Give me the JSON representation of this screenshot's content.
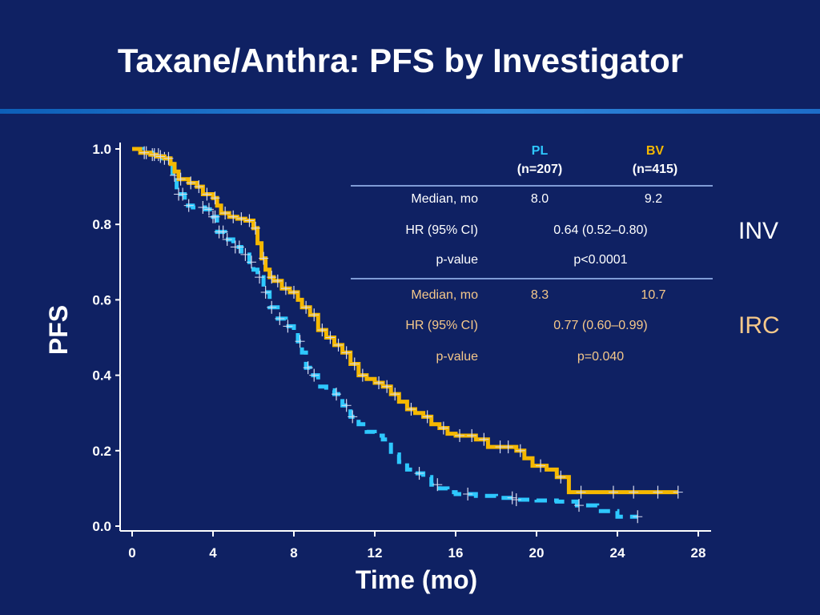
{
  "slide": {
    "title": "Taxane/Anthra:  PFS by Investigator"
  },
  "table": {
    "groups": [
      {
        "name": "PL",
        "n": "(n=207)",
        "color": "#2ec8ff"
      },
      {
        "name": "BV",
        "n": "(n=415)",
        "color": "#f5b800"
      }
    ],
    "sections": [
      {
        "tag": "INV",
        "color": "#ffffff",
        "median_label": "Median, mo",
        "median_pl": "8.0",
        "median_bv": "9.2",
        "hr_label": "HR (95% CI)",
        "hr_value": "0.64 (0.52–0.80)",
        "p_label": "p-value",
        "p_value": "p<0.0001"
      },
      {
        "tag": "IRC",
        "color": "#f5c88a",
        "median_label": "Median, mo",
        "median_pl": "8.3",
        "median_bv": "10.7",
        "hr_label": "HR (95% CI)",
        "hr_value": "0.77 (0.60–0.99)",
        "p_label": "p-value",
        "p_value": "p=0.040"
      }
    ]
  },
  "chart_data": {
    "type": "line",
    "xlabel": "Time (mo)",
    "ylabel": "PFS",
    "xlim": [
      0,
      28
    ],
    "ylim": [
      0,
      1.0
    ],
    "xticks": [
      0,
      4,
      8,
      12,
      16,
      20,
      24,
      28
    ],
    "yticks": [
      0.0,
      0.2,
      0.4,
      0.6,
      0.8,
      1.0
    ],
    "ytick_labels": [
      "0.0",
      "0.2",
      "0.4",
      "0.6",
      "0.8",
      "1.0"
    ],
    "step": true,
    "censor_marks": true,
    "series": [
      {
        "name": "PL",
        "color": "#2ec8ff",
        "style": "dashed",
        "points": [
          [
            0,
            1.0
          ],
          [
            0.5,
            0.99
          ],
          [
            1.0,
            0.985
          ],
          [
            1.5,
            0.975
          ],
          [
            1.8,
            0.96
          ],
          [
            2.0,
            0.93
          ],
          [
            2.2,
            0.88
          ],
          [
            2.6,
            0.85
          ],
          [
            3.0,
            0.845
          ],
          [
            3.6,
            0.84
          ],
          [
            4.0,
            0.82
          ],
          [
            4.2,
            0.78
          ],
          [
            4.6,
            0.76
          ],
          [
            5.0,
            0.74
          ],
          [
            5.4,
            0.72
          ],
          [
            5.8,
            0.7
          ],
          [
            6.0,
            0.68
          ],
          [
            6.2,
            0.66
          ],
          [
            6.5,
            0.62
          ],
          [
            6.8,
            0.58
          ],
          [
            7.2,
            0.55
          ],
          [
            7.6,
            0.53
          ],
          [
            8.0,
            0.52
          ],
          [
            8.2,
            0.49
          ],
          [
            8.4,
            0.46
          ],
          [
            8.6,
            0.42
          ],
          [
            8.8,
            0.4
          ],
          [
            9.2,
            0.37
          ],
          [
            9.6,
            0.36
          ],
          [
            10.0,
            0.35
          ],
          [
            10.4,
            0.32
          ],
          [
            10.8,
            0.29
          ],
          [
            11.2,
            0.27
          ],
          [
            11.6,
            0.25
          ],
          [
            12.0,
            0.24
          ],
          [
            12.4,
            0.23
          ],
          [
            12.8,
            0.19
          ],
          [
            13.2,
            0.17
          ],
          [
            13.6,
            0.15
          ],
          [
            14.0,
            0.14
          ],
          [
            14.4,
            0.13
          ],
          [
            14.8,
            0.11
          ],
          [
            15.2,
            0.1
          ],
          [
            15.6,
            0.09
          ],
          [
            16.0,
            0.085
          ],
          [
            17.0,
            0.08
          ],
          [
            18.0,
            0.075
          ],
          [
            19.0,
            0.07
          ],
          [
            20.0,
            0.068
          ],
          [
            21.0,
            0.065
          ],
          [
            22.0,
            0.055
          ],
          [
            23.0,
            0.04
          ],
          [
            24.0,
            0.025
          ],
          [
            25.0,
            0.025
          ]
        ],
        "censor_x": [
          0.7,
          1.0,
          1.3,
          1.6,
          2.1,
          2.3,
          2.5,
          2.8,
          3.5,
          3.8,
          4.0,
          4.1,
          4.3,
          4.5,
          4.7,
          5.1,
          5.3,
          5.6,
          5.9,
          6.3,
          6.6,
          6.9,
          7.3,
          7.7,
          8.3,
          8.7,
          9.0,
          10.1,
          10.6,
          10.9,
          14.2,
          15.1,
          16.6,
          18.8,
          19.0,
          22.1,
          25.0
        ]
      },
      {
        "name": "BV",
        "color": "#f5b800",
        "style": "solid",
        "points": [
          [
            0,
            1.0
          ],
          [
            0.4,
            0.99
          ],
          [
            0.9,
            0.985
          ],
          [
            1.2,
            0.98
          ],
          [
            1.6,
            0.975
          ],
          [
            1.9,
            0.96
          ],
          [
            2.1,
            0.94
          ],
          [
            2.3,
            0.92
          ],
          [
            2.8,
            0.91
          ],
          [
            3.2,
            0.9
          ],
          [
            3.5,
            0.88
          ],
          [
            4.0,
            0.87
          ],
          [
            4.2,
            0.85
          ],
          [
            4.4,
            0.83
          ],
          [
            4.8,
            0.82
          ],
          [
            5.2,
            0.815
          ],
          [
            5.6,
            0.81
          ],
          [
            6.0,
            0.79
          ],
          [
            6.2,
            0.75
          ],
          [
            6.4,
            0.71
          ],
          [
            6.6,
            0.68
          ],
          [
            6.8,
            0.66
          ],
          [
            7.0,
            0.65
          ],
          [
            7.4,
            0.63
          ],
          [
            7.8,
            0.62
          ],
          [
            8.2,
            0.6
          ],
          [
            8.4,
            0.58
          ],
          [
            8.8,
            0.56
          ],
          [
            9.2,
            0.52
          ],
          [
            9.6,
            0.5
          ],
          [
            10.0,
            0.48
          ],
          [
            10.4,
            0.46
          ],
          [
            10.8,
            0.43
          ],
          [
            11.2,
            0.4
          ],
          [
            11.6,
            0.39
          ],
          [
            12.0,
            0.38
          ],
          [
            12.4,
            0.37
          ],
          [
            12.8,
            0.35
          ],
          [
            13.2,
            0.33
          ],
          [
            13.6,
            0.31
          ],
          [
            14.0,
            0.3
          ],
          [
            14.4,
            0.29
          ],
          [
            14.8,
            0.27
          ],
          [
            15.2,
            0.26
          ],
          [
            15.6,
            0.245
          ],
          [
            16.0,
            0.24
          ],
          [
            17.0,
            0.23
          ],
          [
            17.6,
            0.21
          ],
          [
            19.0,
            0.2
          ],
          [
            19.4,
            0.18
          ],
          [
            19.8,
            0.16
          ],
          [
            20.5,
            0.15
          ],
          [
            21.0,
            0.13
          ],
          [
            21.6,
            0.09
          ],
          [
            23.0,
            0.09
          ],
          [
            27.0,
            0.09
          ]
        ],
        "censor_x": [
          0.6,
          1.1,
          1.4,
          1.8,
          2.4,
          2.9,
          3.3,
          3.7,
          4.1,
          4.6,
          5.0,
          5.4,
          5.8,
          6.1,
          6.5,
          6.9,
          7.2,
          7.6,
          8.0,
          8.6,
          9.0,
          9.4,
          9.8,
          10.2,
          10.6,
          11.0,
          11.4,
          12.2,
          12.6,
          13.0,
          13.8,
          14.6,
          15.4,
          16.2,
          16.8,
          17.4,
          18.2,
          18.6,
          19.2,
          20.2,
          21.2,
          22.2,
          23.8,
          24.8,
          26.0,
          27.0
        ]
      }
    ]
  }
}
